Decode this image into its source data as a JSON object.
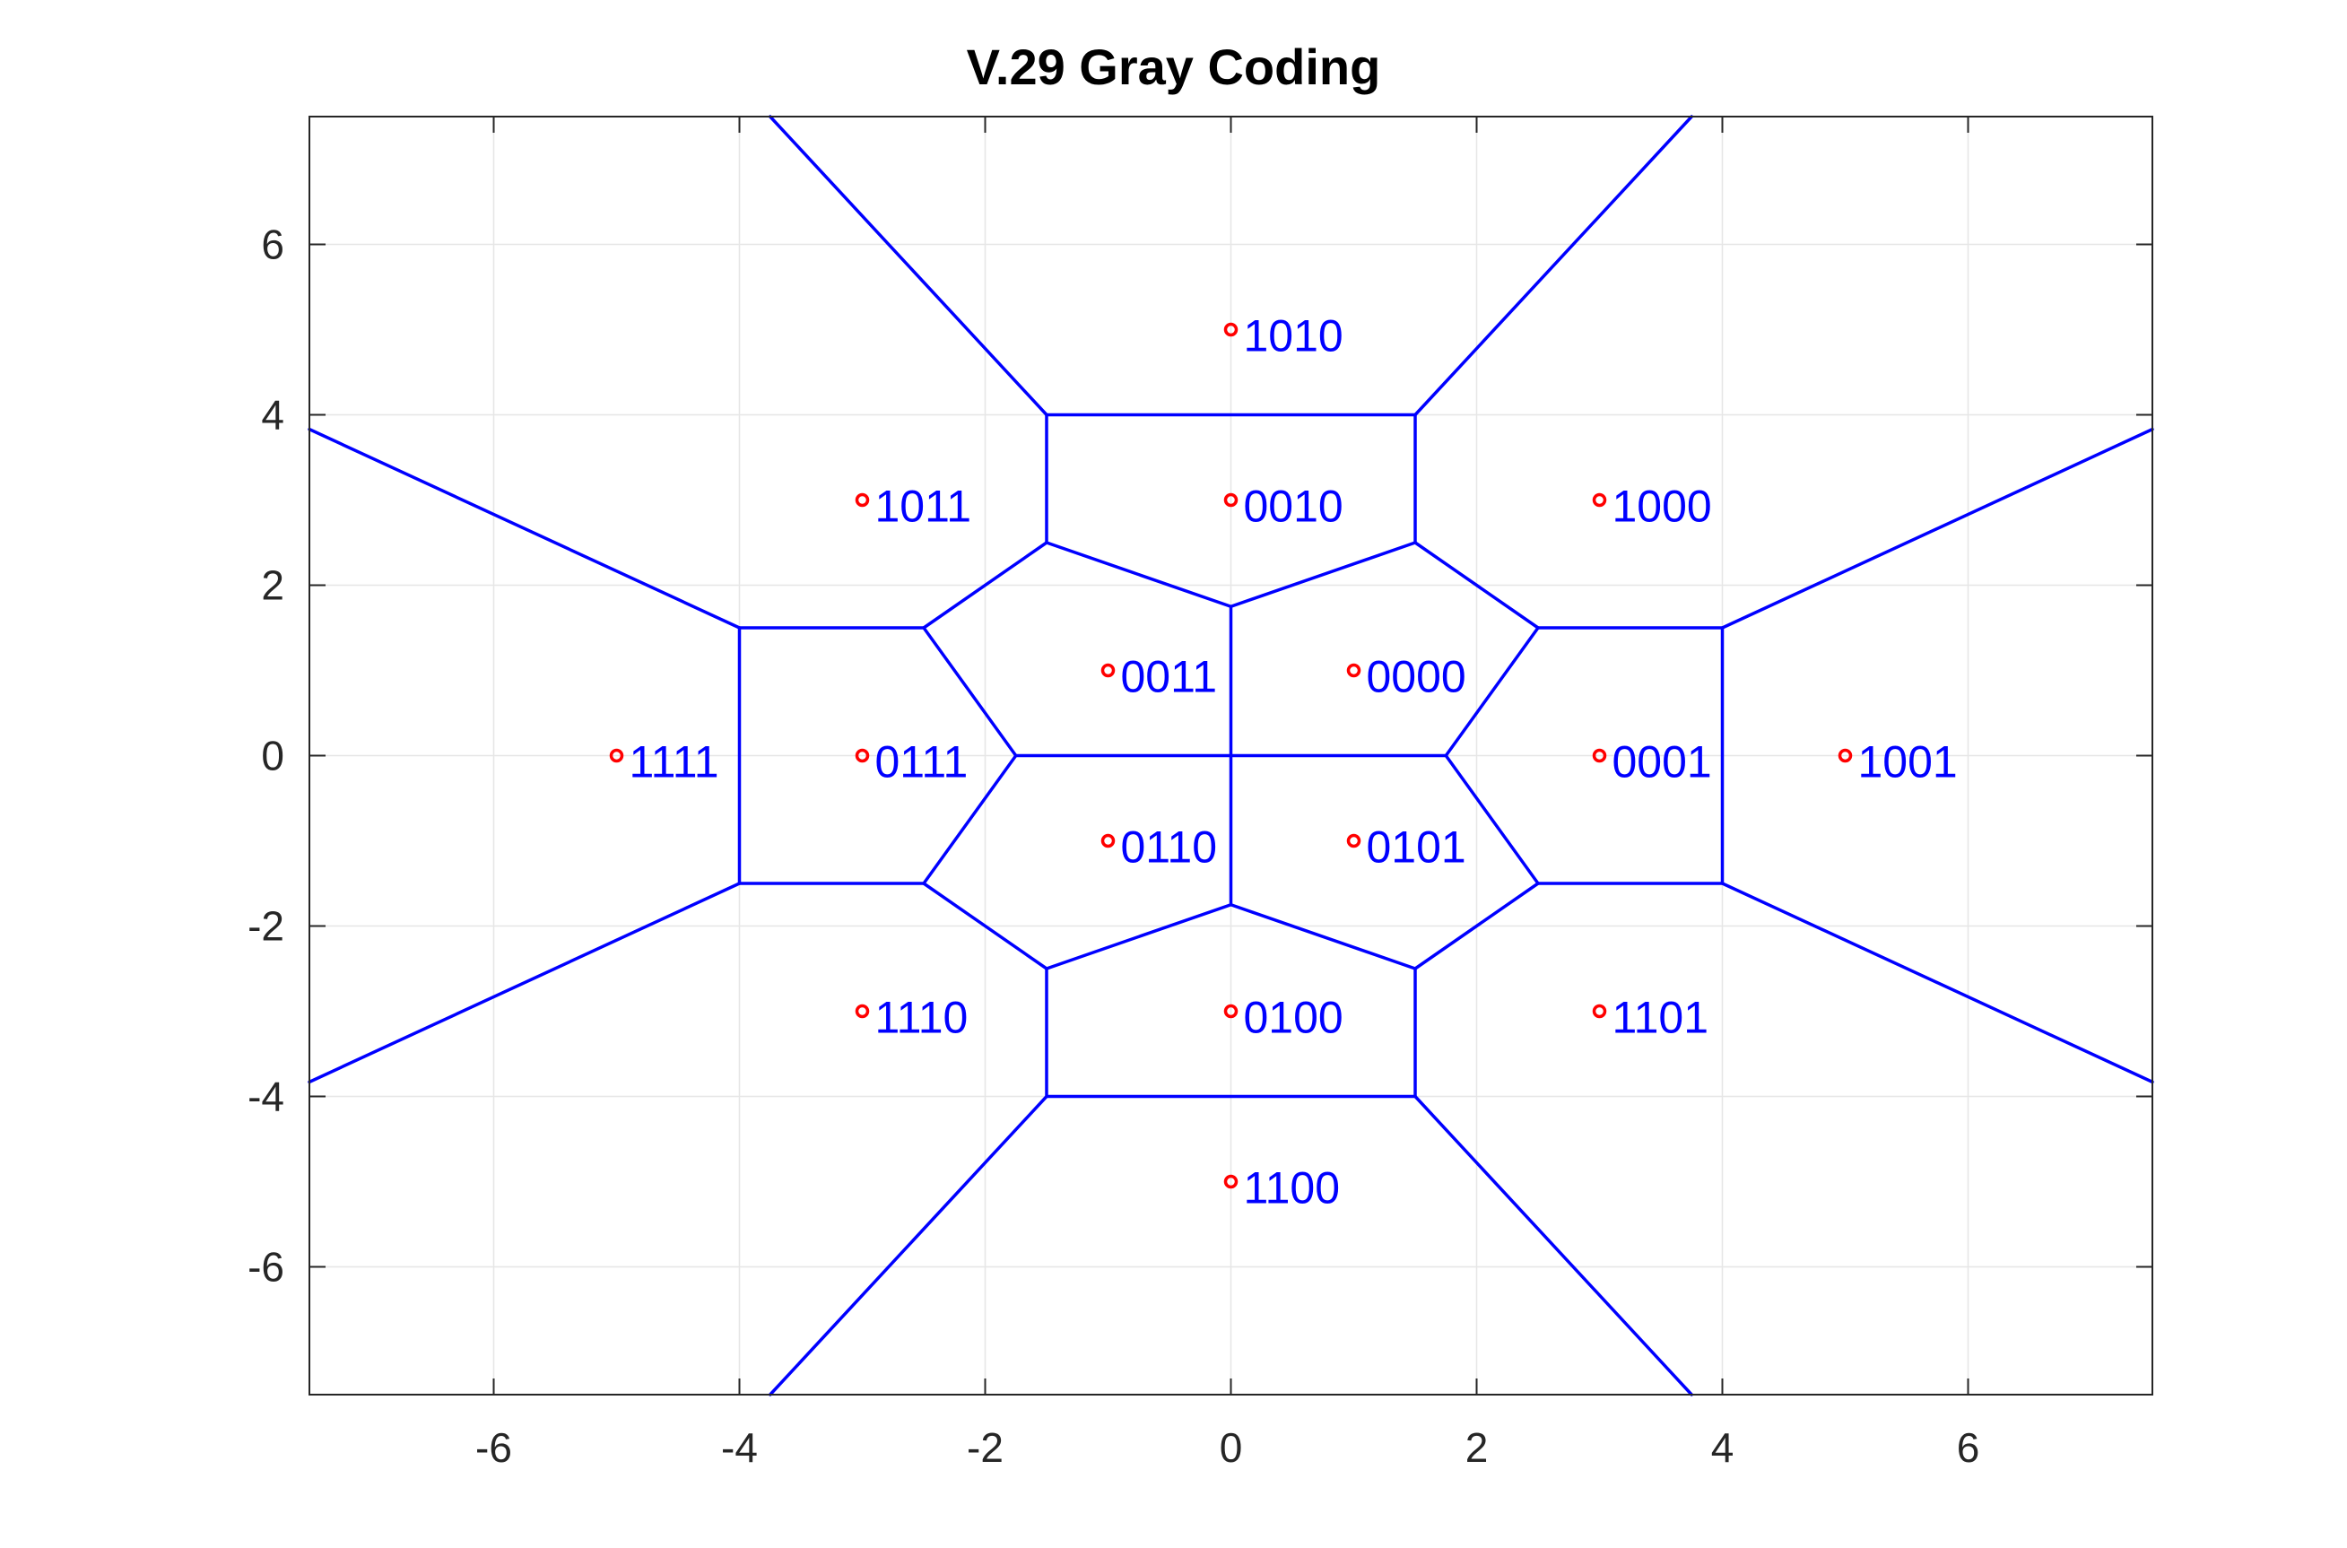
{
  "chart_data": {
    "type": "scatter",
    "title": "V.29 Gray Coding",
    "xlabel": "",
    "ylabel": "",
    "xlim": [
      -7.5,
      7.5
    ],
    "ylim": [
      -7.5,
      7.5
    ],
    "xticks": [
      -6,
      -4,
      -2,
      0,
      2,
      4,
      6
    ],
    "yticks": [
      -6,
      -4,
      -2,
      0,
      2,
      4,
      6
    ],
    "grid": true,
    "colors": {
      "points": "#ff0000",
      "labels": "#0000ff",
      "regions": "#0000ff",
      "axes": "#262626",
      "grid": "#e6e6e6"
    },
    "points": [
      {
        "x": 0,
        "y": 5,
        "label": "1010"
      },
      {
        "x": -3,
        "y": 3,
        "label": "1011"
      },
      {
        "x": 0,
        "y": 3,
        "label": "0010"
      },
      {
        "x": 3,
        "y": 3,
        "label": "1000"
      },
      {
        "x": -1,
        "y": 1,
        "label": "0011"
      },
      {
        "x": 1,
        "y": 1,
        "label": "0000"
      },
      {
        "x": -5,
        "y": 0,
        "label": "1111"
      },
      {
        "x": -3,
        "y": 0,
        "label": "0111"
      },
      {
        "x": 3,
        "y": 0,
        "label": "0001"
      },
      {
        "x": 5,
        "y": 0,
        "label": "1001"
      },
      {
        "x": -1,
        "y": -1,
        "label": "0110"
      },
      {
        "x": 1,
        "y": -1,
        "label": "0101"
      },
      {
        "x": -3,
        "y": -3,
        "label": "1110"
      },
      {
        "x": 0,
        "y": -3,
        "label": "0100"
      },
      {
        "x": 3,
        "y": -3,
        "label": "1101"
      },
      {
        "x": 0,
        "y": -5,
        "label": "1100"
      }
    ],
    "region_boundaries": [
      [
        [
          -1.5,
          4
        ],
        [
          1.5,
          4
        ]
      ],
      [
        [
          -1.5,
          4
        ],
        [
          -3.75,
          7.5
        ]
      ],
      [
        [
          1.5,
          4
        ],
        [
          3.75,
          7.5
        ]
      ],
      [
        [
          -1.5,
          4
        ],
        [
          -1.5,
          2.5
        ]
      ],
      [
        [
          1.5,
          4
        ],
        [
          1.5,
          2.5
        ]
      ],
      [
        [
          -1.5,
          2.5
        ],
        [
          0,
          1.75
        ]
      ],
      [
        [
          0,
          1.75
        ],
        [
          1.5,
          2.5
        ]
      ],
      [
        [
          -1.5,
          2.5
        ],
        [
          -2.5,
          1.5
        ]
      ],
      [
        [
          1.5,
          2.5
        ],
        [
          2.5,
          1.5
        ]
      ],
      [
        [
          0,
          1.75
        ],
        [
          0,
          -1.75
        ]
      ],
      [
        [
          -4,
          1.5
        ],
        [
          -2.5,
          1.5
        ]
      ],
      [
        [
          2.5,
          1.5
        ],
        [
          4,
          1.5
        ]
      ],
      [
        [
          -4,
          1.5
        ],
        [
          -7.5,
          3.83
        ]
      ],
      [
        [
          4,
          1.5
        ],
        [
          7.5,
          3.83
        ]
      ],
      [
        [
          -4,
          1.5
        ],
        [
          -4,
          -1.5
        ]
      ],
      [
        [
          4,
          1.5
        ],
        [
          4,
          -1.5
        ]
      ],
      [
        [
          -2.5,
          1.5
        ],
        [
          -1.75,
          0
        ]
      ],
      [
        [
          2.5,
          1.5
        ],
        [
          1.75,
          0
        ]
      ],
      [
        [
          -1.75,
          0
        ],
        [
          1.75,
          0
        ]
      ],
      [
        [
          -1.75,
          0
        ],
        [
          -2.5,
          -1.5
        ]
      ],
      [
        [
          1.75,
          0
        ],
        [
          2.5,
          -1.5
        ]
      ],
      [
        [
          -4,
          -1.5
        ],
        [
          -2.5,
          -1.5
        ]
      ],
      [
        [
          2.5,
          -1.5
        ],
        [
          4,
          -1.5
        ]
      ],
      [
        [
          -4,
          -1.5
        ],
        [
          -7.5,
          -3.83
        ]
      ],
      [
        [
          4,
          -1.5
        ],
        [
          7.5,
          -3.83
        ]
      ],
      [
        [
          -2.5,
          -1.5
        ],
        [
          -1.5,
          -2.5
        ]
      ],
      [
        [
          2.5,
          -1.5
        ],
        [
          1.5,
          -2.5
        ]
      ],
      [
        [
          -1.5,
          -2.5
        ],
        [
          0,
          -1.75
        ]
      ],
      [
        [
          0,
          -1.75
        ],
        [
          1.5,
          -2.5
        ]
      ],
      [
        [
          -1.5,
          -2.5
        ],
        [
          -1.5,
          -4
        ]
      ],
      [
        [
          1.5,
          -2.5
        ],
        [
          1.5,
          -4
        ]
      ],
      [
        [
          -1.5,
          -4
        ],
        [
          1.5,
          -4
        ]
      ],
      [
        [
          -1.5,
          -4
        ],
        [
          -3.75,
          -7.5
        ]
      ],
      [
        [
          1.5,
          -4
        ],
        [
          3.75,
          -7.5
        ]
      ]
    ]
  }
}
